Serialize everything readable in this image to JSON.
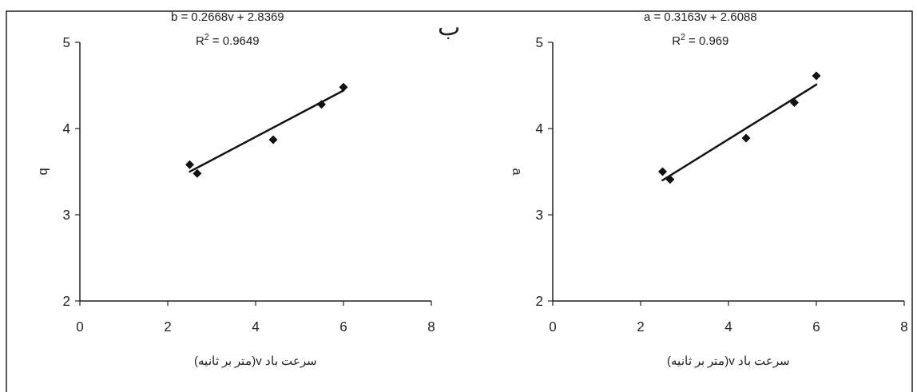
{
  "chart_data": [
    {
      "type": "scatter",
      "xlabel": "سرعت باد v(متر بر ثانیه)",
      "ylabel": "b",
      "xlim": [
        0,
        8
      ],
      "xticks": [
        0,
        2,
        4,
        6,
        8
      ],
      "ylim": [
        2,
        5
      ],
      "yticks": [
        2,
        3,
        4,
        5
      ],
      "grid": false,
      "annotations": [
        "b = 0.2668v + 2.8369",
        "R$^{2}$ = 0.9649"
      ],
      "series": [
        {
          "type": "scatter",
          "marker": "diamond",
          "color": "#111111",
          "x": [
            2.5,
            2.67,
            4.4,
            5.5,
            6
          ],
          "values": [
            3.58,
            3.48,
            3.87,
            4.28,
            4.48
          ]
        },
        {
          "type": "line",
          "line_style": "solid",
          "marker": "none",
          "color": "#111111",
          "x": [
            2.5,
            6
          ],
          "values": [
            3.5,
            4.44
          ]
        }
      ]
    },
    {
      "type": "scatter",
      "title": "ب",
      "xlabel": "سرعت باد v(متر بر ثانیه)",
      "ylabel": "a",
      "xlim": [
        0,
        8
      ],
      "xticks": [
        0,
        2,
        4,
        6,
        8
      ],
      "ylim": [
        2,
        5
      ],
      "yticks": [
        2,
        3,
        4,
        5
      ],
      "grid": false,
      "annotations": [
        "a = 0.3163v + 2.6088",
        "R$^{2}$ = 0.969"
      ],
      "series": [
        {
          "type": "scatter",
          "marker": "diamond",
          "color": "#111111",
          "x": [
            2.5,
            2.67,
            4.4,
            5.5,
            6
          ],
          "values": [
            3.5,
            3.41,
            3.89,
            4.3,
            4.61
          ]
        },
        {
          "type": "line",
          "line_style": "solid",
          "marker": "none",
          "color": "#111111",
          "x": [
            2.5,
            6
          ],
          "values": [
            3.4,
            4.51
          ]
        }
      ]
    }
  ]
}
